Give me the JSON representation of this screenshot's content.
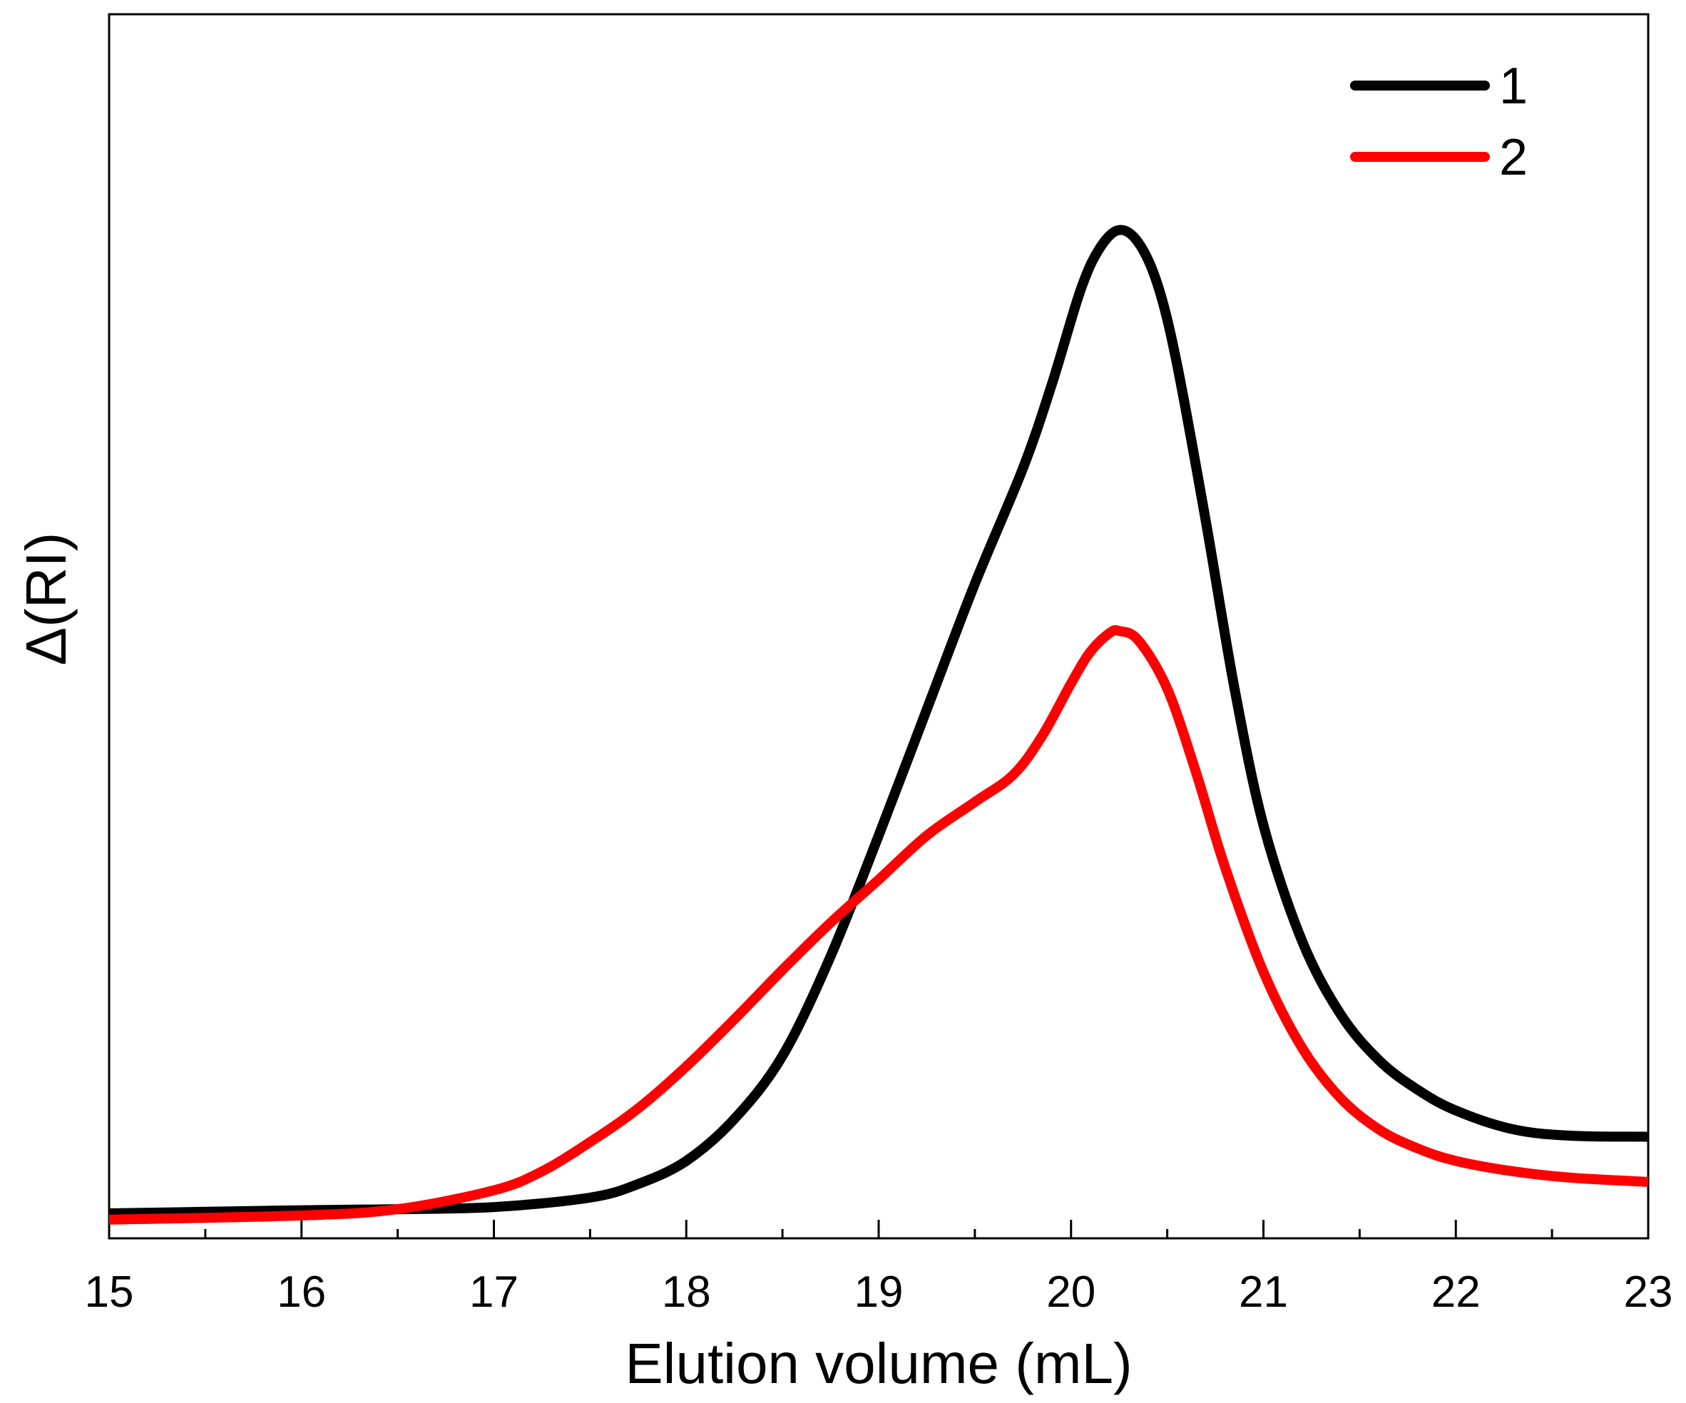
{
  "chart_data": {
    "type": "line",
    "title": "",
    "xlabel": "Elution volume (mL)",
    "ylabel": "Δ(RI)",
    "xlim": [
      15,
      23
    ],
    "ylim": [
      0,
      1.15
    ],
    "x_ticks": [
      "15",
      "16",
      "17",
      "18",
      "19",
      "20",
      "21",
      "22",
      "23"
    ],
    "y_ticks_shown": false,
    "grid": false,
    "legend_position": "top-right",
    "series": [
      {
        "name": "1",
        "color": "#000000",
        "x": [
          15.0,
          16.0,
          16.5,
          17.0,
          17.5,
          17.75,
          18.0,
          18.25,
          18.5,
          18.75,
          19.0,
          19.25,
          19.5,
          19.75,
          19.9,
          20.05,
          20.15,
          20.25,
          20.35,
          20.45,
          20.55,
          20.7,
          20.85,
          21.0,
          21.2,
          21.4,
          21.6,
          21.8,
          22.0,
          22.3,
          22.6,
          23.0
        ],
        "y": [
          0.0,
          0.003,
          0.004,
          0.006,
          0.015,
          0.028,
          0.05,
          0.09,
          0.15,
          0.245,
          0.36,
          0.48,
          0.6,
          0.71,
          0.79,
          0.88,
          0.92,
          0.937,
          0.925,
          0.885,
          0.81,
          0.66,
          0.5,
          0.37,
          0.26,
          0.19,
          0.146,
          0.118,
          0.098,
          0.08,
          0.074,
          0.073
        ]
      },
      {
        "name": "2",
        "color": "#ff0000",
        "x": [
          15.0,
          16.0,
          16.5,
          17.0,
          17.25,
          17.5,
          17.75,
          18.0,
          18.25,
          18.5,
          18.75,
          19.0,
          19.25,
          19.5,
          19.7,
          19.85,
          20.0,
          20.1,
          20.2,
          20.25,
          20.35,
          20.5,
          20.65,
          20.8,
          21.0,
          21.2,
          21.4,
          21.6,
          21.8,
          22.0,
          22.3,
          22.6,
          23.0
        ],
        "y": [
          -0.006,
          -0.002,
          0.004,
          0.022,
          0.04,
          0.068,
          0.1,
          0.14,
          0.185,
          0.232,
          0.277,
          0.318,
          0.36,
          0.392,
          0.418,
          0.455,
          0.505,
          0.535,
          0.553,
          0.555,
          0.546,
          0.5,
          0.42,
          0.33,
          0.23,
          0.158,
          0.11,
          0.08,
          0.062,
          0.05,
          0.04,
          0.034,
          0.03
        ]
      }
    ]
  }
}
